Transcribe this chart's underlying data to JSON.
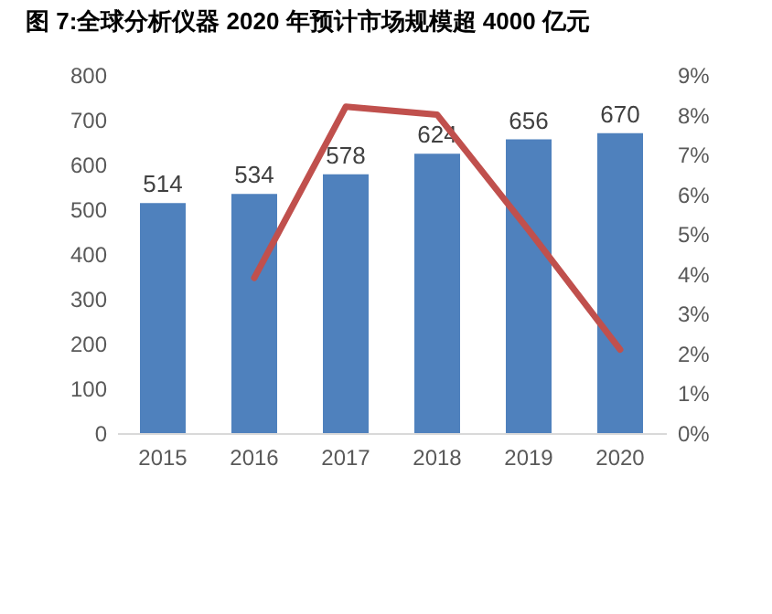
{
  "chart_data": {
    "type": "bar",
    "title": "图 7:全球分析仪器 2020 年预计市场规模超 4000 亿元",
    "categories": [
      "2015",
      "2016",
      "2017",
      "2018",
      "2019",
      "2020"
    ],
    "series": [
      {
        "color": "#4f81bd",
        "values": [
          514,
          534,
          578,
          624,
          656,
          670
        ],
        "value_labels": [
          "514",
          "534",
          "578",
          "624",
          "656",
          "670"
        ]
      },
      {
        "type": "line",
        "axis": "y2",
        "color": "#c0504d",
        "values": [
          null,
          3.9,
          8.2,
          8.0,
          5.1,
          2.1
        ]
      }
    ],
    "ylim": [
      0,
      800
    ],
    "yticks": [
      0,
      100,
      200,
      300,
      400,
      500,
      600,
      700,
      800
    ],
    "y2lim": [
      0,
      9
    ],
    "y2ticks": [
      {
        "value": 0,
        "label": "0%"
      },
      {
        "value": 1,
        "label": "1%"
      },
      {
        "value": 2,
        "label": "2%"
      },
      {
        "value": 3,
        "label": "3%"
      },
      {
        "value": 4,
        "label": "4%"
      },
      {
        "value": 5,
        "label": "5%"
      },
      {
        "value": 6,
        "label": "6%"
      },
      {
        "value": 7,
        "label": "7%"
      },
      {
        "value": 8,
        "label": "8%"
      },
      {
        "value": 9,
        "label": "9%"
      }
    ],
    "grid": false
  }
}
